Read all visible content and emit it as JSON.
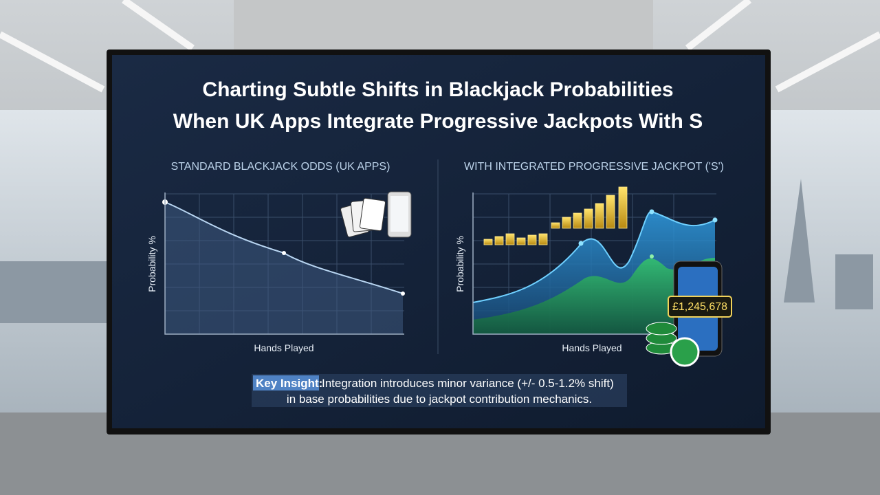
{
  "header": {
    "title_lines": [
      "Charting Subtle Shifts in Blackjack Probabilities",
      "When UK Apps Integrate Progressive Jackpots With S"
    ]
  },
  "panels": [
    {
      "title": "STANDARD BLACKJACK ODDS (UK APPS)",
      "y_label": "Probability %",
      "x_label": "Hands Played"
    },
    {
      "title": "WITH INTEGRATED PROGRESSIVE JACKPOT ('S')",
      "y_label": "Probability %",
      "x_label": "Hands Played",
      "jackpot": "£1,245,678"
    }
  ],
  "insight": {
    "label": "Key Insight:",
    "lines": [
      "Integration introduces minor variance (+/- 0.5-1.2% shift)",
      "in base probabilities due to jackpot contribution mechanics."
    ]
  }
}
